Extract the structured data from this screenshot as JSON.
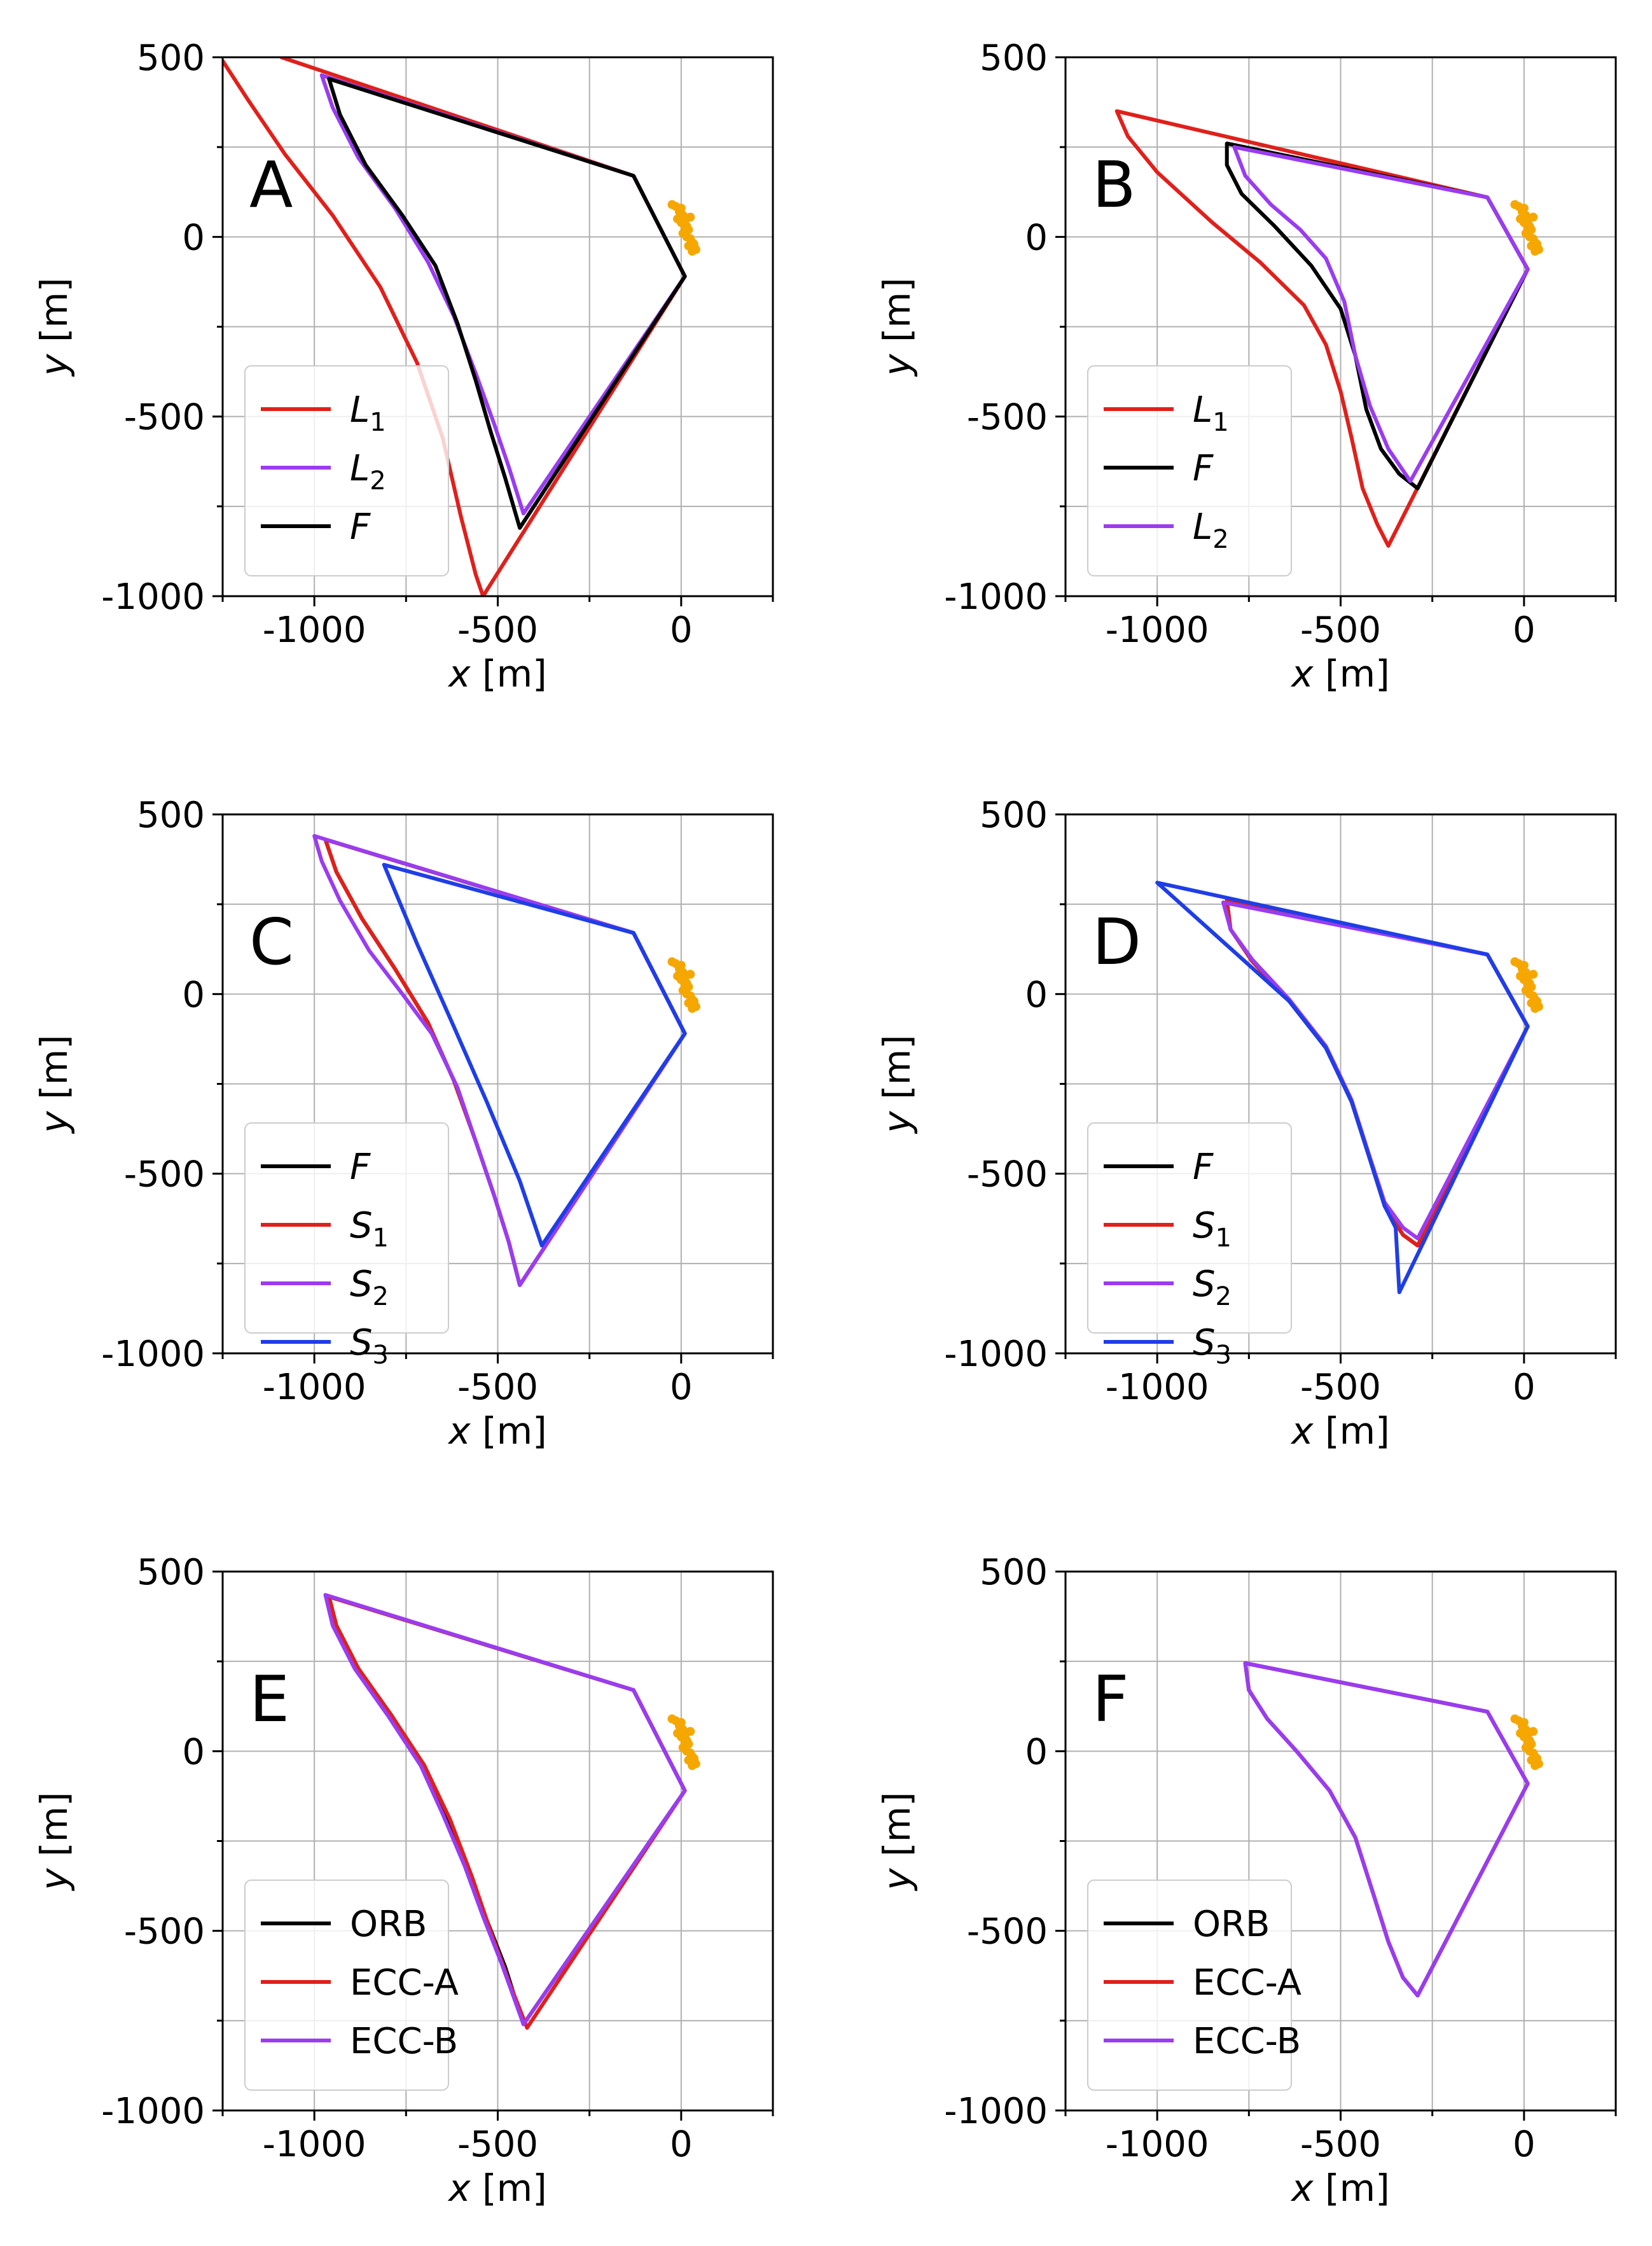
{
  "colors": {
    "F": "#000000",
    "L1": "#e0201b",
    "L2": "#9a3cf0",
    "S1": "#e0201b",
    "S2": "#9a3cf0",
    "S3": "#1f3ee6",
    "ORB": "#000000",
    "ECC-A": "#e0201b",
    "ECC-B": "#9a3cf0",
    "target": "#f5a700"
  },
  "chart_data": [
    {
      "type": "line",
      "panel": "A",
      "xlabel_var": "x",
      "xlabel_unit": " [m]",
      "ylabel_var": "y",
      "ylabel_unit": " [m]",
      "xlim": [
        -1250,
        250
      ],
      "ylim": [
        -1000,
        500
      ],
      "xticks": [
        -1000,
        -500,
        0
      ],
      "yticks": [
        500,
        0,
        -500,
        -1000
      ],
      "xtick_labels": [
        "-1000",
        "-500",
        "0"
      ],
      "ytick_labels": [
        "500",
        "0",
        "-500",
        "-1000"
      ],
      "legend_position": "lower-left",
      "series": [
        {
          "key": "L1",
          "label_main": "L",
          "label_sub": "1",
          "italic": true,
          "x": [
            -1250,
            -1180,
            -1080,
            -950,
            -820,
            -720,
            -650,
            -600,
            -560,
            -540,
            10,
            -130,
            -1090
          ],
          "y": [
            490,
            380,
            230,
            60,
            -140,
            -350,
            -560,
            -780,
            -940,
            -1000,
            -110,
            170,
            500
          ]
        },
        {
          "key": "L2",
          "label_main": "L",
          "label_sub": "2",
          "italic": true,
          "x": [
            -980,
            -950,
            -880,
            -780,
            -690,
            -620,
            -560,
            -510,
            -470,
            -430,
            10,
            -130,
            -980
          ],
          "y": [
            450,
            360,
            220,
            80,
            -70,
            -220,
            -380,
            -520,
            -640,
            -770,
            -110,
            170,
            450
          ]
        },
        {
          "key": "F",
          "label_main": "F",
          "label_sub": "",
          "italic": true,
          "x": [
            -960,
            -930,
            -860,
            -760,
            -670,
            -610,
            -560,
            -520,
            -480,
            -440,
            10,
            -130,
            -960
          ],
          "y": [
            440,
            340,
            200,
            60,
            -80,
            -240,
            -400,
            -540,
            -670,
            -810,
            -110,
            170,
            440
          ]
        }
      ]
    },
    {
      "type": "line",
      "panel": "B",
      "xlabel_var": "x",
      "xlabel_unit": " [m]",
      "ylabel_var": "y",
      "ylabel_unit": " [m]",
      "xlim": [
        -1250,
        250
      ],
      "ylim": [
        -1000,
        500
      ],
      "xticks": [
        -1000,
        -500,
        0
      ],
      "yticks": [
        500,
        0,
        -500,
        -1000
      ],
      "xtick_labels": [
        "-1000",
        "-500",
        "0"
      ],
      "ytick_labels": [
        "500",
        "0",
        "-500",
        "-1000"
      ],
      "legend_position": "lower-left",
      "series": [
        {
          "key": "L1",
          "label_main": "L",
          "label_sub": "1",
          "italic": true,
          "x": [
            -1110,
            -1080,
            -1000,
            -850,
            -720,
            -600,
            -540,
            -500,
            -470,
            -440,
            -400,
            -370,
            10,
            -100,
            -1110
          ],
          "y": [
            350,
            280,
            180,
            40,
            -70,
            -190,
            -300,
            -430,
            -560,
            -700,
            -800,
            -860,
            -90,
            110,
            350
          ]
        },
        {
          "key": "F",
          "label_main": "F",
          "label_sub": "",
          "italic": true,
          "x": [
            -810,
            -810,
            -770,
            -680,
            -580,
            -500,
            -460,
            -430,
            -390,
            -340,
            -290,
            10,
            -100,
            -810
          ],
          "y": [
            260,
            200,
            120,
            30,
            -80,
            -200,
            -330,
            -480,
            -590,
            -660,
            -700,
            -90,
            110,
            260
          ]
        },
        {
          "key": "L2",
          "label_main": "L",
          "label_sub": "2",
          "italic": true,
          "x": [
            -790,
            -760,
            -690,
            -610,
            -540,
            -490,
            -460,
            -420,
            -370,
            -310,
            10,
            -100,
            -790
          ],
          "y": [
            250,
            170,
            90,
            20,
            -60,
            -180,
            -330,
            -470,
            -590,
            -680,
            -90,
            110,
            250
          ]
        }
      ]
    },
    {
      "type": "line",
      "panel": "C",
      "xlabel_var": "x",
      "xlabel_unit": " [m]",
      "ylabel_var": "y",
      "ylabel_unit": " [m]",
      "xlim": [
        -1250,
        250
      ],
      "ylim": [
        -1000,
        500
      ],
      "xticks": [
        -1000,
        -500,
        0
      ],
      "yticks": [
        500,
        0,
        -500,
        -1000
      ],
      "xtick_labels": [
        "-1000",
        "-500",
        "0"
      ],
      "ytick_labels": [
        "500",
        "0",
        "-500",
        "-1000"
      ],
      "legend_position": "lower-left",
      "series": [
        {
          "key": "F",
          "label_main": "F",
          "label_sub": "",
          "italic": true,
          "x": [
            -970,
            -940,
            -870,
            -780,
            -690,
            -620,
            -560,
            -510,
            -470,
            -440,
            10,
            -130,
            -970
          ],
          "y": [
            430,
            340,
            210,
            70,
            -80,
            -240,
            -410,
            -560,
            -690,
            -810,
            -110,
            170,
            430
          ]
        },
        {
          "key": "S1",
          "label_main": "S",
          "label_sub": "1",
          "italic": true,
          "x": [
            -970,
            -940,
            -870,
            -780,
            -690,
            -620,
            -560,
            -510,
            -470,
            -440,
            10,
            -130,
            -970
          ],
          "y": [
            430,
            340,
            210,
            70,
            -80,
            -240,
            -410,
            -560,
            -690,
            -810,
            -110,
            170,
            430
          ]
        },
        {
          "key": "S2",
          "label_main": "S",
          "label_sub": "2",
          "italic": true,
          "x": [
            -1000,
            -980,
            -930,
            -850,
            -760,
            -680,
            -610,
            -560,
            -510,
            -470,
            -440,
            10,
            -130,
            -1000
          ],
          "y": [
            440,
            370,
            260,
            120,
            0,
            -110,
            -260,
            -410,
            -560,
            -690,
            -810,
            -110,
            170,
            440
          ]
        },
        {
          "key": "S3",
          "label_main": "S",
          "label_sub": "3",
          "italic": true,
          "x": [
            -810,
            -720,
            -620,
            -530,
            -440,
            -380,
            10,
            -130,
            -810
          ],
          "y": [
            360,
            140,
            -90,
            -300,
            -520,
            -700,
            -110,
            170,
            360
          ]
        }
      ]
    },
    {
      "type": "line",
      "panel": "D",
      "xlabel_var": "x",
      "xlabel_unit": " [m]",
      "ylabel_var": "y",
      "ylabel_unit": " [m]",
      "xlim": [
        -1250,
        250
      ],
      "ylim": [
        -1000,
        500
      ],
      "xticks": [
        -1000,
        -500,
        0
      ],
      "yticks": [
        500,
        0,
        -500,
        -1000
      ],
      "xtick_labels": [
        "-1000",
        "-500",
        "0"
      ],
      "ytick_labels": [
        "500",
        "0",
        "-500",
        "-1000"
      ],
      "legend_position": "lower-left",
      "series": [
        {
          "key": "F",
          "label_main": "F",
          "label_sub": "",
          "italic": true,
          "x": [
            -810,
            -800,
            -740,
            -640,
            -540,
            -470,
            -420,
            -380,
            -330,
            -290,
            10,
            -100,
            -810
          ],
          "y": [
            260,
            180,
            90,
            -20,
            -150,
            -300,
            -460,
            -590,
            -670,
            -700,
            -90,
            110,
            260
          ]
        },
        {
          "key": "S1",
          "label_main": "S",
          "label_sub": "1",
          "italic": true,
          "x": [
            -810,
            -800,
            -740,
            -640,
            -540,
            -470,
            -420,
            -380,
            -330,
            -290,
            10,
            -100,
            -810
          ],
          "y": [
            260,
            180,
            90,
            -20,
            -150,
            -300,
            -460,
            -590,
            -670,
            -700,
            -90,
            110,
            260
          ]
        },
        {
          "key": "S2",
          "label_main": "S",
          "label_sub": "2",
          "italic": true,
          "x": [
            -820,
            -800,
            -740,
            -640,
            -540,
            -470,
            -420,
            -380,
            -330,
            -290,
            10,
            -100,
            -820
          ],
          "y": [
            255,
            180,
            95,
            -15,
            -145,
            -295,
            -455,
            -580,
            -650,
            -680,
            -90,
            110,
            255
          ]
        },
        {
          "key": "S3",
          "label_main": "S",
          "label_sub": "3",
          "italic": true,
          "x": [
            -1000,
            -880,
            -760,
            -640,
            -540,
            -470,
            -420,
            -380,
            -350,
            -340,
            10,
            -100,
            -1000
          ],
          "y": [
            310,
            200,
            90,
            -20,
            -150,
            -300,
            -460,
            -590,
            -650,
            -830,
            -90,
            110,
            310
          ]
        }
      ]
    },
    {
      "type": "line",
      "panel": "E",
      "xlabel_var": "x",
      "xlabel_unit": " [m]",
      "ylabel_var": "y",
      "ylabel_unit": " [m]",
      "xlim": [
        -1250,
        250
      ],
      "ylim": [
        -1000,
        500
      ],
      "xticks": [
        -1000,
        -500,
        0
      ],
      "yticks": [
        500,
        0,
        -500,
        -1000
      ],
      "xtick_labels": [
        "-1000",
        "-500",
        "0"
      ],
      "ytick_labels": [
        "500",
        "0",
        "-500",
        "-1000"
      ],
      "legend_position": "lower-left",
      "series": [
        {
          "key": "ORB",
          "label_main": "ORB",
          "label_sub": "",
          "italic": false,
          "x": [
            -960,
            -940,
            -880,
            -790,
            -700,
            -640,
            -580,
            -530,
            -480,
            -430,
            10,
            -130,
            -960
          ],
          "y": [
            430,
            350,
            230,
            100,
            -40,
            -180,
            -330,
            -470,
            -600,
            -760,
            -110,
            170,
            430
          ]
        },
        {
          "key": "ECC-A",
          "label_main": "ECC-A",
          "label_sub": "",
          "italic": false,
          "x": [
            -960,
            -940,
            -880,
            -790,
            -700,
            -630,
            -570,
            -520,
            -470,
            -420,
            10,
            -130,
            -960
          ],
          "y": [
            430,
            350,
            230,
            100,
            -40,
            -190,
            -350,
            -500,
            -640,
            -770,
            -110,
            170,
            430
          ]
        },
        {
          "key": "ECC-B",
          "label_main": "ECC-B",
          "label_sub": "",
          "italic": false,
          "x": [
            -970,
            -950,
            -890,
            -800,
            -710,
            -650,
            -590,
            -540,
            -490,
            -430,
            10,
            -130,
            -970
          ],
          "y": [
            435,
            350,
            230,
            100,
            -40,
            -175,
            -320,
            -460,
            -590,
            -760,
            -110,
            170,
            435
          ]
        }
      ]
    },
    {
      "type": "line",
      "panel": "F",
      "xlabel_var": "x",
      "xlabel_unit": " [m]",
      "ylabel_var": "y",
      "ylabel_unit": " [m]",
      "xlim": [
        -1250,
        250
      ],
      "ylim": [
        -1000,
        500
      ],
      "xticks": [
        -1000,
        -500,
        0
      ],
      "yticks": [
        500,
        0,
        -500,
        -1000
      ],
      "xtick_labels": [
        "-1000",
        "-500",
        "0"
      ],
      "ytick_labels": [
        "500",
        "0",
        "-500",
        "-1000"
      ],
      "legend_position": "lower-left",
      "series": [
        {
          "key": "ORB",
          "label_main": "ORB",
          "label_sub": "",
          "italic": false,
          "x": [
            -760,
            -750,
            -700,
            -620,
            -530,
            -460,
            -410,
            -370,
            -330,
            -290,
            10,
            -100,
            -760
          ],
          "y": [
            245,
            170,
            90,
            0,
            -110,
            -240,
            -400,
            -530,
            -630,
            -680,
            -90,
            110,
            245
          ]
        },
        {
          "key": "ECC-A",
          "label_main": "ECC-A",
          "label_sub": "",
          "italic": false,
          "x": [
            -760,
            -750,
            -700,
            -620,
            -530,
            -460,
            -410,
            -370,
            -330,
            -290,
            10,
            -100,
            -760
          ],
          "y": [
            245,
            170,
            90,
            0,
            -110,
            -240,
            -400,
            -530,
            -630,
            -680,
            -90,
            110,
            245
          ]
        },
        {
          "key": "ECC-B",
          "label_main": "ECC-B",
          "label_sub": "",
          "italic": false,
          "x": [
            -760,
            -750,
            -700,
            -620,
            -530,
            -460,
            -410,
            -370,
            -330,
            -290,
            10,
            -100,
            -760
          ],
          "y": [
            245,
            170,
            90,
            0,
            -110,
            -240,
            -400,
            -530,
            -630,
            -680,
            -90,
            110,
            245
          ]
        }
      ]
    }
  ],
  "target_points": {
    "x": [
      -25,
      -15,
      -5,
      0,
      5,
      -10,
      0,
      10,
      15,
      20,
      5,
      15,
      25,
      30,
      20,
      35,
      40,
      30,
      10,
      25
    ],
    "y": [
      90,
      85,
      70,
      80,
      60,
      50,
      40,
      45,
      30,
      20,
      10,
      0,
      -5,
      -15,
      -25,
      -20,
      -35,
      -40,
      25,
      55
    ]
  }
}
